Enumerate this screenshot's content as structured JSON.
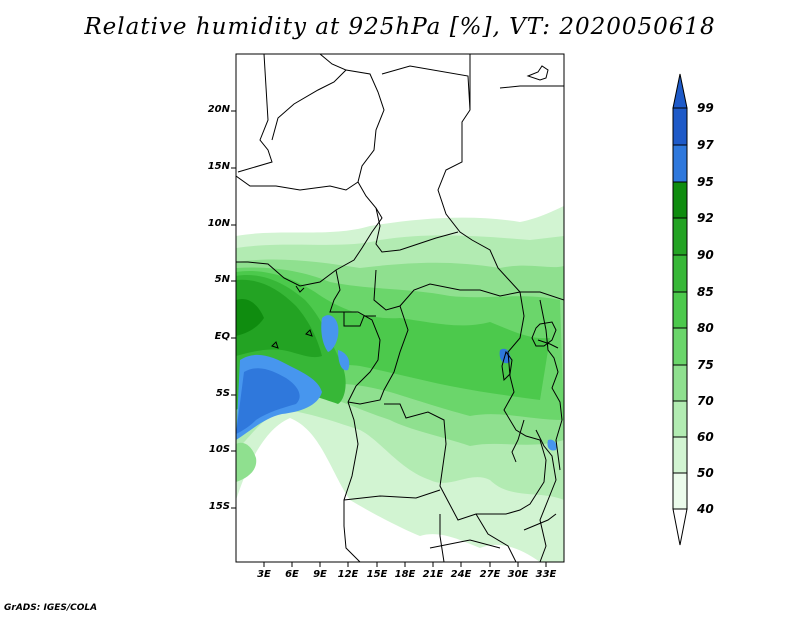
{
  "title": "Relative humidity at 925hPa [%], VT: 2020050618",
  "credit": "GrADS: IGES/COLA",
  "map": {
    "lat_ticks": [
      "20N",
      "15N",
      "10N",
      "5N",
      "EQ",
      "5S",
      "10S",
      "15S"
    ],
    "lon_ticks": [
      "3E",
      "6E",
      "9E",
      "12E",
      "15E",
      "18E",
      "21E",
      "24E",
      "27E",
      "30E",
      "33E"
    ]
  },
  "colorbar": {
    "levels": [
      "99",
      "97",
      "95",
      "92",
      "90",
      "85",
      "80",
      "75",
      "70",
      "60",
      "50",
      "40"
    ],
    "colors": [
      "#1e5ac8",
      "#2f78dc",
      "#4796ee",
      "#0f8c0f",
      "#23a323",
      "#37b737",
      "#4cc94c",
      "#6bd66b",
      "#8fe08f",
      "#b2ebb2",
      "#d2f4d2",
      "#ecfbec"
    ],
    "top_triangle_color": "#1e5ac8",
    "bottom_triangle_color": "#ffffff"
  }
}
